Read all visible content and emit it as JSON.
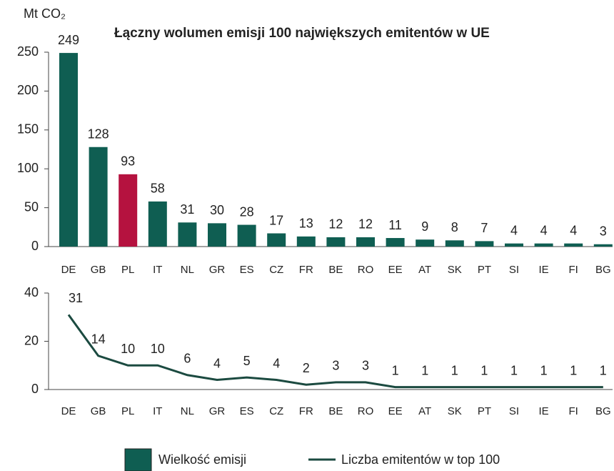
{
  "chart_data": [
    {
      "type": "bar",
      "title": "Łączny wolumen emisji 100 największych emitentów w UE",
      "ylabel": "Mt CO₂",
      "categories": [
        "DE",
        "GB",
        "PL",
        "IT",
        "NL",
        "GR",
        "ES",
        "CZ",
        "FR",
        "BE",
        "RO",
        "EE",
        "AT",
        "SK",
        "PT",
        "SI",
        "IE",
        "FI",
        "BG"
      ],
      "series": [
        {
          "name": "Wielkość emisji",
          "color": "#0f5e52",
          "colors": [
            "#0f5e52",
            "#0f5e52",
            "#b5123f",
            "#0f5e52",
            "#0f5e52",
            "#0f5e52",
            "#0f5e52",
            "#0f5e52",
            "#0f5e52",
            "#0f5e52",
            "#0f5e52",
            "#0f5e52",
            "#0f5e52",
            "#0f5e52",
            "#0f5e52",
            "#0f5e52",
            "#0f5e52",
            "#0f5e52",
            "#0f5e52"
          ],
          "values": [
            249,
            128,
            93,
            58,
            31,
            30,
            28,
            17,
            13,
            12,
            12,
            11,
            9,
            8,
            7,
            4,
            4,
            4,
            3
          ]
        }
      ],
      "ylim": [
        0,
        250
      ],
      "yticks": [
        0,
        50,
        100,
        150,
        200,
        250
      ],
      "grid": false
    },
    {
      "type": "line",
      "categories": [
        "DE",
        "GB",
        "PL",
        "IT",
        "NL",
        "GR",
        "ES",
        "CZ",
        "FR",
        "BE",
        "RO",
        "EE",
        "AT",
        "SK",
        "PT",
        "SI",
        "IE",
        "FI",
        "BG"
      ],
      "series": [
        {
          "name": "Liczba emitentów w top 100",
          "color": "#1b4a40",
          "values": [
            31,
            14,
            10,
            10,
            6,
            4,
            5,
            4,
            2,
            3,
            3,
            1,
            1,
            1,
            1,
            1,
            1,
            1,
            1
          ]
        }
      ],
      "ylim": [
        0,
        40
      ],
      "yticks": [
        0,
        20,
        40
      ],
      "grid": false
    }
  ]
}
